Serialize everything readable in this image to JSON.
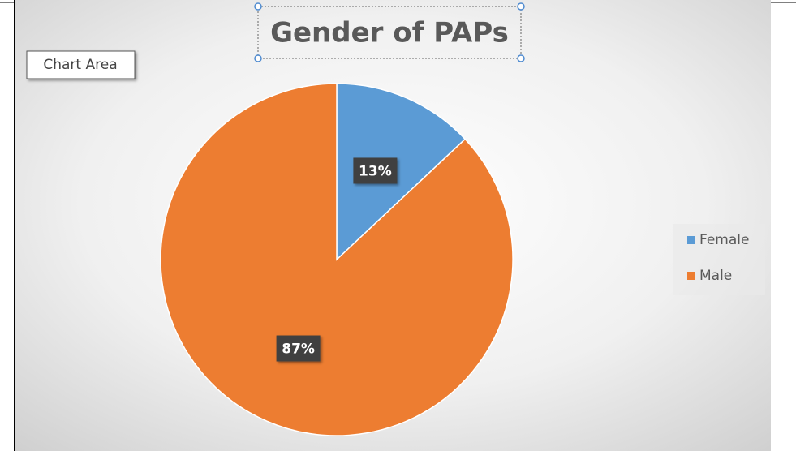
{
  "tooltip": "Chart Area",
  "chart_data": {
    "type": "pie",
    "title": "Gender of PAPs",
    "categories": [
      "Female",
      "Male"
    ],
    "values": [
      13,
      87
    ],
    "value_labels": [
      "13%",
      "87%"
    ],
    "colors": [
      "#5b9bd5",
      "#ed7d31"
    ],
    "legend": "right"
  }
}
